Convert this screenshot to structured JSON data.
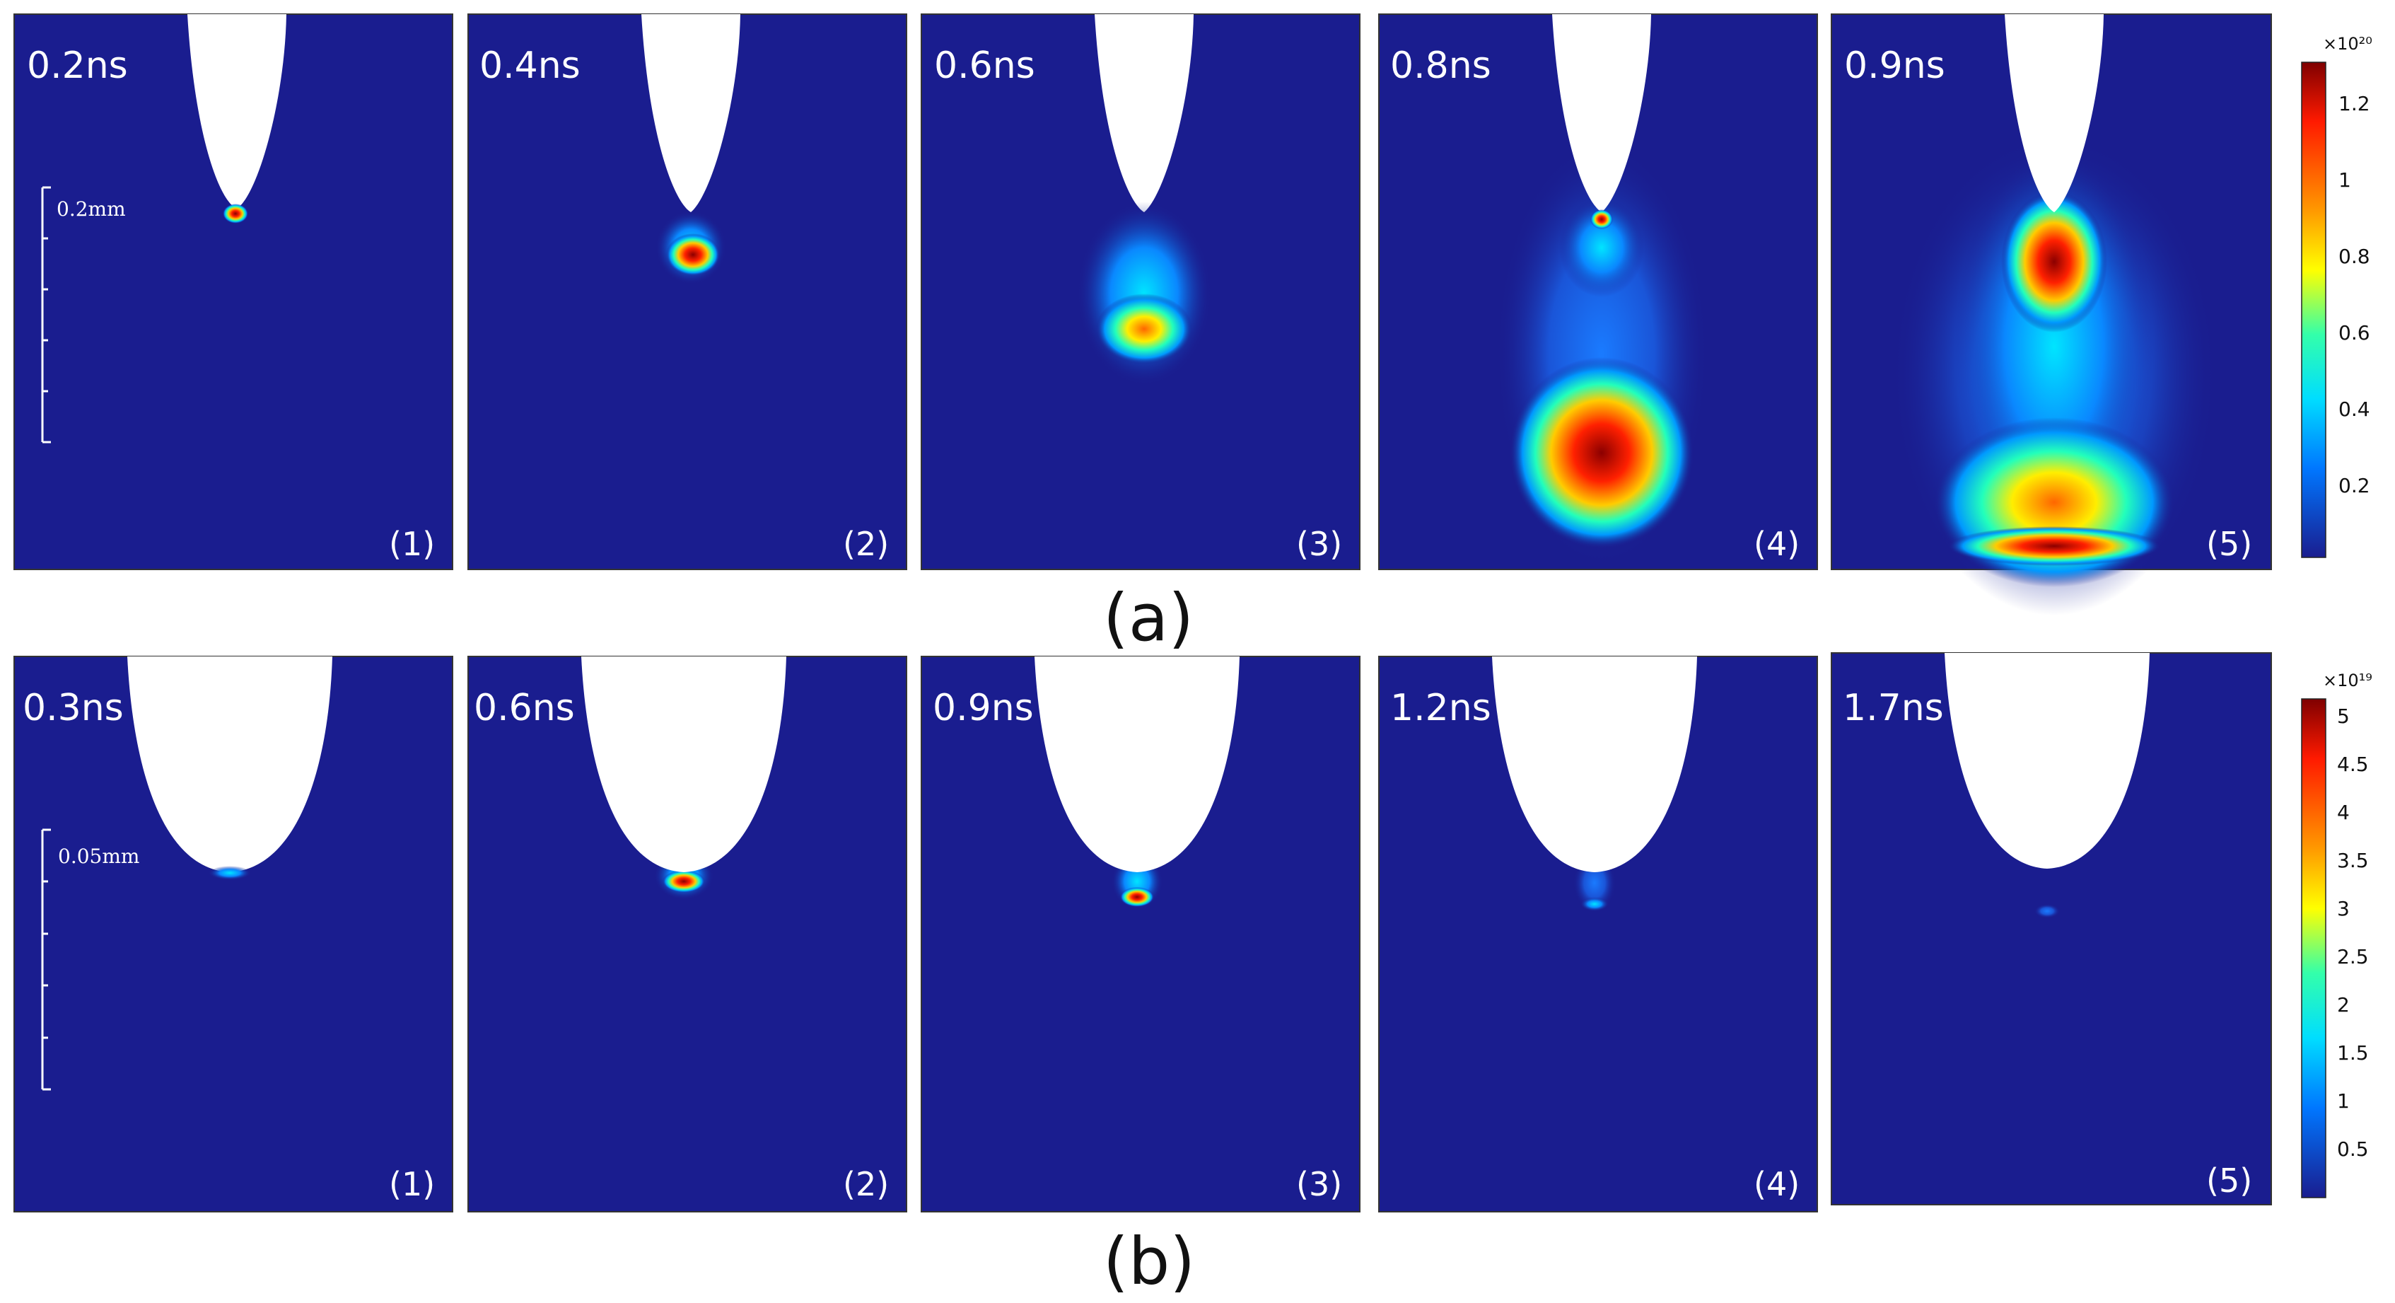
{
  "rows": [
    {
      "label": "(a)",
      "scale_bar": "0.2mm",
      "colorbar": {
        "exponent": "×10²⁰",
        "ticks": [
          "0.2",
          "0.4",
          "0.6",
          "0.8",
          "1",
          "1.2"
        ]
      },
      "panels": [
        {
          "time": "0.2ns",
          "index": "(1)"
        },
        {
          "time": "0.4ns",
          "index": "(2)"
        },
        {
          "time": "0.6ns",
          "index": "(3)"
        },
        {
          "time": "0.8ns",
          "index": "(4)"
        },
        {
          "time": "0.9ns",
          "index": "(5)"
        }
      ]
    },
    {
      "label": "(b)",
      "scale_bar": "0.05mm",
      "colorbar": {
        "exponent": "×10¹⁹",
        "ticks": [
          "0.5",
          "1",
          "1.5",
          "2",
          "2.5",
          "3",
          "3.5",
          "4",
          "4.5",
          "5"
        ]
      },
      "panels": [
        {
          "time": "0.3ns",
          "index": "(1)"
        },
        {
          "time": "0.6ns",
          "index": "(2)"
        },
        {
          "time": "0.9ns",
          "index": "(3)"
        },
        {
          "time": "1.2ns",
          "index": "(4)"
        },
        {
          "time": "1.7ns",
          "index": "(5)"
        }
      ]
    }
  ],
  "colors": {
    "background": "#1a1d8f",
    "colormap": [
      "#7f0000",
      "#ff1a00",
      "#ff9900",
      "#ffff00",
      "#33ffaa",
      "#00ddff",
      "#0077ff",
      "#1a1d8f"
    ]
  }
}
